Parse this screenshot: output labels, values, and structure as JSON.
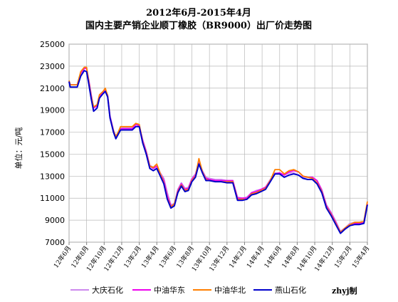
{
  "chart_data": {
    "type": "line",
    "title_line1": "2012年6月-2015年4月",
    "title_line2": "国内主要产销企业顺丁橡胶（BR9000）出厂价走势图",
    "ylabel": "单位：元/吨",
    "credit": "zhyj制",
    "ylim": [
      7000,
      25000
    ],
    "yticks": [
      "25000",
      "23000",
      "21000",
      "19000",
      "17000",
      "15000",
      "13000",
      "11000",
      "9000",
      "7000"
    ],
    "grid": true,
    "legend_position": "bottom",
    "x_tick_labels": [
      "12年6月",
      "12年8月",
      "12年10月",
      "12年12月",
      "13年2月",
      "13年4月",
      "13年6月",
      "13年8月",
      "13年10月",
      "13年12月",
      "14年2月",
      "14年4月",
      "14年6月",
      "14年8月",
      "14年10月",
      "14年12月",
      "15年2月",
      "15年4月"
    ],
    "series": [
      {
        "name": "大庆石化",
        "color": "#cc88ee",
        "points": [
          [
            0,
            21500
          ],
          [
            0.1,
            21300
          ],
          [
            0.7,
            21300
          ],
          [
            1.0,
            22300
          ],
          [
            1.3,
            22800
          ],
          [
            1.5,
            22800
          ],
          [
            1.7,
            21700
          ],
          [
            1.9,
            20400
          ],
          [
            2.1,
            19200
          ],
          [
            2.4,
            19500
          ],
          [
            2.6,
            20300
          ],
          [
            2.9,
            20600
          ],
          [
            3.1,
            20800
          ],
          [
            3.3,
            20400
          ],
          [
            3.5,
            18500
          ],
          [
            3.8,
            17200
          ],
          [
            4.0,
            16600
          ],
          [
            4.2,
            16900
          ],
          [
            4.4,
            17400
          ],
          [
            5.0,
            17400
          ],
          [
            5.4,
            17400
          ],
          [
            5.7,
            17700
          ],
          [
            6.0,
            17600
          ],
          [
            6.3,
            16300
          ],
          [
            6.6,
            15300
          ],
          [
            6.9,
            14000
          ],
          [
            7.2,
            13800
          ],
          [
            7.5,
            14000
          ],
          [
            7.8,
            13300
          ],
          [
            8.1,
            12800
          ],
          [
            8.4,
            11500
          ],
          [
            8.7,
            10400
          ],
          [
            9.0,
            10500
          ],
          [
            9.3,
            11800
          ],
          [
            9.6,
            12400
          ],
          [
            9.9,
            11900
          ],
          [
            10.2,
            12000
          ],
          [
            10.5,
            12800
          ],
          [
            10.8,
            13200
          ],
          [
            11.1,
            14300
          ],
          [
            11.4,
            13500
          ],
          [
            11.7,
            12900
          ],
          [
            12.0,
            12800
          ],
          [
            12.5,
            12700
          ],
          [
            13.0,
            12700
          ],
          [
            13.5,
            12600
          ],
          [
            14.0,
            12600
          ],
          [
            14.4,
            11100
          ],
          [
            14.8,
            11000
          ],
          [
            15.2,
            11100
          ],
          [
            15.6,
            11500
          ],
          [
            16.0,
            11700
          ],
          [
            16.4,
            11800
          ],
          [
            16.8,
            12000
          ],
          [
            17.2,
            12700
          ],
          [
            17.6,
            13300
          ],
          [
            18.0,
            13300
          ],
          [
            18.4,
            13100
          ],
          [
            18.8,
            13300
          ],
          [
            19.2,
            13300
          ],
          [
            19.6,
            13100
          ],
          [
            20.0,
            12900
          ],
          [
            20.4,
            12900
          ],
          [
            20.8,
            12900
          ],
          [
            21.2,
            12600
          ],
          [
            21.6,
            11800
          ],
          [
            22.0,
            10400
          ],
          [
            22.4,
            9700
          ],
          [
            22.8,
            8900
          ],
          [
            23.2,
            8000
          ],
          [
            23.6,
            8300
          ],
          [
            24.0,
            8700
          ],
          [
            24.4,
            8800
          ],
          [
            24.8,
            8800
          ],
          [
            25.2,
            8900
          ],
          [
            25.5,
            10500
          ]
        ]
      },
      {
        "name": "中油华东",
        "color": "#ee00ee",
        "points": [
          [
            0,
            21600
          ],
          [
            0.1,
            21300
          ],
          [
            0.7,
            21300
          ],
          [
            1.0,
            22400
          ],
          [
            1.3,
            22800
          ],
          [
            1.5,
            22800
          ],
          [
            1.7,
            21600
          ],
          [
            1.9,
            20300
          ],
          [
            2.1,
            19200
          ],
          [
            2.4,
            19400
          ],
          [
            2.6,
            20300
          ],
          [
            2.9,
            20600
          ],
          [
            3.1,
            20800
          ],
          [
            3.3,
            20300
          ],
          [
            3.5,
            18400
          ],
          [
            3.8,
            17100
          ],
          [
            4.0,
            16600
          ],
          [
            4.2,
            16900
          ],
          [
            4.4,
            17300
          ],
          [
            5.0,
            17300
          ],
          [
            5.4,
            17300
          ],
          [
            5.7,
            17700
          ],
          [
            6.0,
            17600
          ],
          [
            6.3,
            16200
          ],
          [
            6.6,
            15200
          ],
          [
            6.9,
            13900
          ],
          [
            7.2,
            13700
          ],
          [
            7.5,
            13900
          ],
          [
            7.8,
            13200
          ],
          [
            8.1,
            12600
          ],
          [
            8.4,
            11200
          ],
          [
            8.7,
            10300
          ],
          [
            9.0,
            10400
          ],
          [
            9.3,
            11700
          ],
          [
            9.6,
            12300
          ],
          [
            9.9,
            11800
          ],
          [
            10.2,
            11900
          ],
          [
            10.5,
            12700
          ],
          [
            10.8,
            13100
          ],
          [
            11.1,
            14200
          ],
          [
            11.4,
            13400
          ],
          [
            11.7,
            12800
          ],
          [
            12.0,
            12700
          ],
          [
            12.5,
            12600
          ],
          [
            13.0,
            12600
          ],
          [
            13.5,
            12600
          ],
          [
            14.0,
            12600
          ],
          [
            14.4,
            11000
          ],
          [
            14.8,
            11000
          ],
          [
            15.2,
            11000
          ],
          [
            15.6,
            11500
          ],
          [
            16.0,
            11600
          ],
          [
            16.4,
            11800
          ],
          [
            16.8,
            12000
          ],
          [
            17.2,
            12600
          ],
          [
            17.6,
            13200
          ],
          [
            18.0,
            13300
          ],
          [
            18.4,
            13100
          ],
          [
            18.8,
            13400
          ],
          [
            19.2,
            13500
          ],
          [
            19.6,
            13400
          ],
          [
            20.0,
            13000
          ],
          [
            20.4,
            12900
          ],
          [
            20.8,
            12900
          ],
          [
            21.2,
            12600
          ],
          [
            21.6,
            11700
          ],
          [
            22.0,
            10300
          ],
          [
            22.4,
            9600
          ],
          [
            22.8,
            8800
          ],
          [
            23.2,
            7900
          ],
          [
            23.6,
            8300
          ],
          [
            24.0,
            8600
          ],
          [
            24.4,
            8700
          ],
          [
            24.8,
            8700
          ],
          [
            25.2,
            8800
          ],
          [
            25.5,
            10500
          ]
        ]
      },
      {
        "name": "中油华北",
        "color": "#ff7f00",
        "points": [
          [
            0,
            21700
          ],
          [
            0.1,
            21300
          ],
          [
            0.7,
            21300
          ],
          [
            1.0,
            22500
          ],
          [
            1.3,
            22900
          ],
          [
            1.5,
            22900
          ],
          [
            1.7,
            21500
          ],
          [
            1.9,
            20200
          ],
          [
            2.1,
            19300
          ],
          [
            2.4,
            19500
          ],
          [
            2.6,
            20400
          ],
          [
            2.9,
            20700
          ],
          [
            3.1,
            21000
          ],
          [
            3.3,
            20300
          ],
          [
            3.5,
            18300
          ],
          [
            3.8,
            17100
          ],
          [
            4.0,
            16600
          ],
          [
            4.2,
            17000
          ],
          [
            4.4,
            17500
          ],
          [
            5.0,
            17500
          ],
          [
            5.4,
            17500
          ],
          [
            5.7,
            17800
          ],
          [
            6.0,
            17700
          ],
          [
            6.3,
            16100
          ],
          [
            6.6,
            15100
          ],
          [
            6.9,
            13900
          ],
          [
            7.2,
            13800
          ],
          [
            7.5,
            14100
          ],
          [
            7.8,
            13200
          ],
          [
            8.1,
            12400
          ],
          [
            8.4,
            11000
          ],
          [
            8.7,
            10200
          ],
          [
            9.0,
            10500
          ],
          [
            9.3,
            11600
          ],
          [
            9.6,
            12200
          ],
          [
            9.9,
            11700
          ],
          [
            10.2,
            11800
          ],
          [
            10.5,
            12600
          ],
          [
            10.8,
            13000
          ],
          [
            11.1,
            14600
          ],
          [
            11.4,
            13400
          ],
          [
            11.7,
            12700
          ],
          [
            12.0,
            12600
          ],
          [
            12.5,
            12500
          ],
          [
            13.0,
            12500
          ],
          [
            13.5,
            12500
          ],
          [
            14.0,
            12500
          ],
          [
            14.4,
            10900
          ],
          [
            14.8,
            10900
          ],
          [
            15.2,
            10900
          ],
          [
            15.6,
            11400
          ],
          [
            16.0,
            11500
          ],
          [
            16.4,
            11700
          ],
          [
            16.8,
            11900
          ],
          [
            17.2,
            12600
          ],
          [
            17.6,
            13600
          ],
          [
            18.0,
            13600
          ],
          [
            18.4,
            13200
          ],
          [
            18.8,
            13500
          ],
          [
            19.2,
            13600
          ],
          [
            19.6,
            13400
          ],
          [
            20.0,
            13000
          ],
          [
            20.4,
            12900
          ],
          [
            20.8,
            12800
          ],
          [
            21.2,
            12400
          ],
          [
            21.6,
            11600
          ],
          [
            22.0,
            10200
          ],
          [
            22.4,
            9500
          ],
          [
            22.8,
            8700
          ],
          [
            23.2,
            7900
          ],
          [
            23.6,
            8300
          ],
          [
            24.0,
            8600
          ],
          [
            24.4,
            8800
          ],
          [
            24.8,
            8800
          ],
          [
            25.2,
            8900
          ],
          [
            25.5,
            10700
          ]
        ]
      },
      {
        "name": "燕山石化",
        "color": "#0000cc",
        "points": [
          [
            0,
            21600
          ],
          [
            0.1,
            21100
          ],
          [
            0.7,
            21100
          ],
          [
            1.0,
            22100
          ],
          [
            1.3,
            22600
          ],
          [
            1.5,
            22500
          ],
          [
            1.7,
            21300
          ],
          [
            1.9,
            20000
          ],
          [
            2.1,
            18900
          ],
          [
            2.4,
            19200
          ],
          [
            2.6,
            20100
          ],
          [
            2.9,
            20500
          ],
          [
            3.1,
            20700
          ],
          [
            3.3,
            20200
          ],
          [
            3.5,
            18300
          ],
          [
            3.8,
            17000
          ],
          [
            4.0,
            16400
          ],
          [
            4.2,
            16800
          ],
          [
            4.4,
            17200
          ],
          [
            5.0,
            17200
          ],
          [
            5.4,
            17200
          ],
          [
            5.7,
            17500
          ],
          [
            6.0,
            17500
          ],
          [
            6.3,
            16000
          ],
          [
            6.6,
            15000
          ],
          [
            6.9,
            13700
          ],
          [
            7.2,
            13500
          ],
          [
            7.5,
            13700
          ],
          [
            7.8,
            13000
          ],
          [
            8.1,
            12300
          ],
          [
            8.4,
            10900
          ],
          [
            8.7,
            10100
          ],
          [
            9.0,
            10300
          ],
          [
            9.3,
            11500
          ],
          [
            9.6,
            12100
          ],
          [
            9.9,
            11600
          ],
          [
            10.2,
            11700
          ],
          [
            10.5,
            12500
          ],
          [
            10.8,
            12900
          ],
          [
            11.1,
            14100
          ],
          [
            11.4,
            13300
          ],
          [
            11.7,
            12600
          ],
          [
            12.0,
            12600
          ],
          [
            12.5,
            12500
          ],
          [
            13.0,
            12500
          ],
          [
            13.5,
            12400
          ],
          [
            14.0,
            12400
          ],
          [
            14.4,
            10800
          ],
          [
            14.8,
            10800
          ],
          [
            15.2,
            10900
          ],
          [
            15.6,
            11300
          ],
          [
            16.0,
            11400
          ],
          [
            16.4,
            11600
          ],
          [
            16.8,
            11800
          ],
          [
            17.2,
            12500
          ],
          [
            17.6,
            13200
          ],
          [
            18.0,
            13200
          ],
          [
            18.4,
            12900
          ],
          [
            18.8,
            13100
          ],
          [
            19.2,
            13200
          ],
          [
            19.6,
            13100
          ],
          [
            20.0,
            12800
          ],
          [
            20.4,
            12700
          ],
          [
            20.8,
            12700
          ],
          [
            21.2,
            12300
          ],
          [
            21.6,
            11500
          ],
          [
            22.0,
            10100
          ],
          [
            22.4,
            9400
          ],
          [
            22.8,
            8600
          ],
          [
            23.2,
            7800
          ],
          [
            23.6,
            8200
          ],
          [
            24.0,
            8500
          ],
          [
            24.4,
            8600
          ],
          [
            24.8,
            8600
          ],
          [
            25.2,
            8700
          ],
          [
            25.5,
            10400
          ]
        ]
      }
    ]
  }
}
